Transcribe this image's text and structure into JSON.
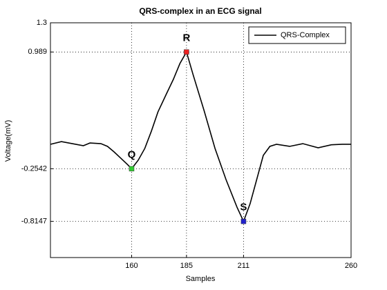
{
  "chart_data": {
    "type": "line",
    "title": "QRS-complex in an ECG signal",
    "xlabel": "Samples",
    "ylabel": "Voltage(mV)",
    "x": [
      123,
      128,
      133,
      138,
      141,
      146,
      149,
      152,
      155,
      158,
      160,
      163,
      166,
      169,
      172,
      176,
      179,
      182,
      185,
      188,
      193,
      198,
      203,
      208,
      211,
      214,
      217,
      220,
      223,
      226,
      232,
      238,
      245,
      251,
      256,
      260
    ],
    "series": [
      {
        "name": "QRS-Complex",
        "color": "#000000",
        "values": [
          0.006,
          0.035,
          0.013,
          -0.009,
          0.02,
          0.013,
          -0.016,
          -0.075,
          -0.141,
          -0.207,
          -0.2542,
          -0.163,
          -0.038,
          0.146,
          0.351,
          0.55,
          0.697,
          0.866,
          0.989,
          0.748,
          0.366,
          -0.038,
          -0.369,
          -0.663,
          -0.8147,
          -0.626,
          -0.369,
          -0.112,
          -0.016,
          0.006,
          -0.016,
          0.013,
          -0.031,
          0.001,
          0.006,
          0.006
        ]
      }
    ],
    "annotations": [
      {
        "label": "Q",
        "x": 160,
        "y": -0.2542,
        "color": "#33cc33"
      },
      {
        "label": "R",
        "x": 185,
        "y": 0.989,
        "color": "#ee2222"
      },
      {
        "label": "S",
        "x": 211,
        "y": -0.8147,
        "color": "#2222cc"
      }
    ],
    "xlim": [
      123,
      260
    ],
    "xticks": [
      160,
      185,
      211,
      260
    ],
    "ylim": [
      -1.2,
      1.3
    ],
    "yticks": [
      1.3,
      0.989,
      -0.2542,
      -0.8147
    ],
    "grid": true,
    "legend": "northeast"
  }
}
